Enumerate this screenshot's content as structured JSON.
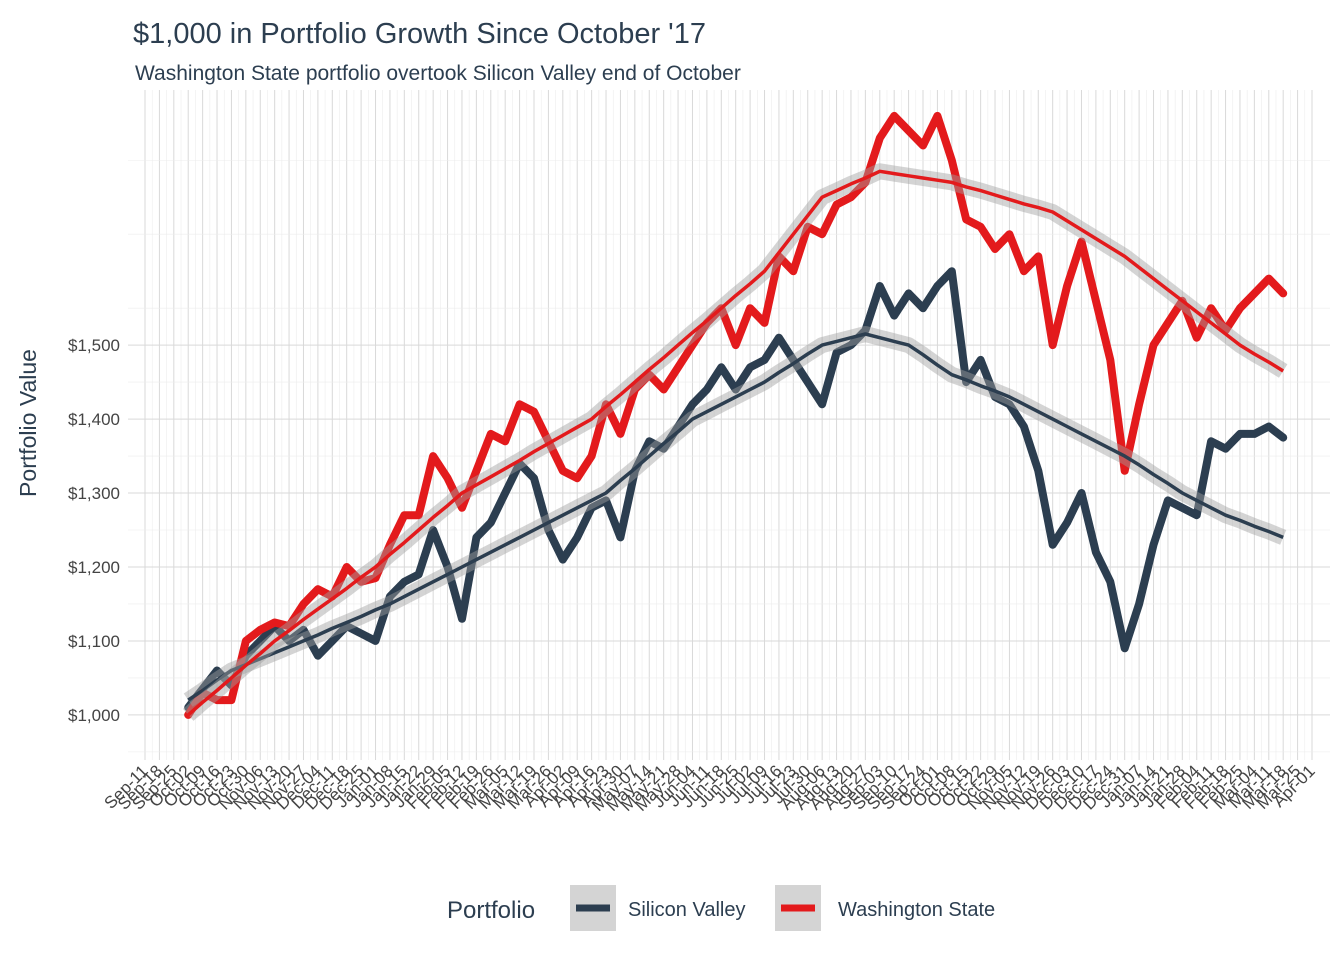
{
  "chart_data": {
    "type": "line",
    "title": "$1,000 in Portfolio Growth Since October '17",
    "subtitle": "Washington State portfolio overtook Silicon Valley end of October",
    "y_label": "Portfolio Value",
    "legend_title": "Portfolio",
    "legend": "bottom",
    "grid": true,
    "categories": [
      "Sep-11",
      "Sep-18",
      "Sep-25",
      "Oct-02",
      "Oct-09",
      "Oct-16",
      "Oct-23",
      "Oct-30",
      "Nov-06",
      "Nov-13",
      "Nov-20",
      "Nov-27",
      "Dec-04",
      "Dec-11",
      "Dec-18",
      "Dec-25",
      "Jan-01",
      "Jan-08",
      "Jan-15",
      "Jan-22",
      "Jan-29",
      "Feb-05",
      "Feb-12",
      "Feb-19",
      "Feb-26",
      "Mar-05",
      "Mar-12",
      "Mar-19",
      "Mar-26",
      "Apr-02",
      "Apr-09",
      "Apr-16",
      "Apr-23",
      "Apr-30",
      "May-07",
      "May-14",
      "May-21",
      "May-28",
      "Jun-04",
      "Jun-11",
      "Jun-18",
      "Jun-25",
      "Jul-02",
      "Jul-09",
      "Jul-16",
      "Jul-23",
      "Jul-30",
      "Aug-06",
      "Aug-13",
      "Aug-20",
      "Aug-27",
      "Sep-03",
      "Sep-10",
      "Sep-17",
      "Sep-24",
      "Oct-01",
      "Oct-08",
      "Oct-15",
      "Oct-22",
      "Oct-29",
      "Nov-05",
      "Nov-12",
      "Nov-19",
      "Nov-26",
      "Dec-03",
      "Dec-10",
      "Dec-17",
      "Dec-24",
      "Dec-31",
      "Jan-07",
      "Jan-14",
      "Jan-21",
      "Jan-28",
      "Feb-04",
      "Feb-11",
      "Feb-18",
      "Feb-25",
      "Mar-04",
      "Mar-11",
      "Mar-18",
      "Mar-25",
      "Apr-01"
    ],
    "ylim": [
      939,
      1845
    ],
    "yticks": [
      {
        "value": 1000,
        "label": "$1,000"
      },
      {
        "value": 1100,
        "label": "$1,100"
      },
      {
        "value": 1200,
        "label": "$1,200"
      },
      {
        "value": 1300,
        "label": "$1,300"
      },
      {
        "value": 1400,
        "label": "$1,400"
      },
      {
        "value": 1500,
        "label": "$1,500"
      }
    ],
    "series": [
      {
        "name": "Silicon Valley",
        "color": "#2c3e50",
        "values": [
          null,
          null,
          null,
          1010,
          1035,
          1060,
          1040,
          1080,
          1100,
          1120,
          1100,
          1115,
          1080,
          1100,
          1120,
          1110,
          1100,
          1160,
          1180,
          1190,
          1250,
          1200,
          1130,
          1240,
          1260,
          1300,
          1340,
          1320,
          1250,
          1210,
          1240,
          1280,
          1290,
          1240,
          1330,
          1370,
          1360,
          1390,
          1420,
          1440,
          1470,
          1440,
          1470,
          1480,
          1510,
          1480,
          1450,
          1420,
          1490,
          1500,
          1520,
          1580,
          1540,
          1570,
          1550,
          1580,
          1600,
          1450,
          1480,
          1430,
          1420,
          1390,
          1330,
          1230,
          1260,
          1300,
          1220,
          1180,
          1090,
          1150,
          1230,
          1290,
          1280,
          1270,
          1370,
          1360,
          1380,
          1380,
          1390,
          1375,
          null,
          null
        ],
        "trend": [
          null,
          null,
          null,
          1020,
          1033,
          1047,
          1060,
          1068,
          1076,
          1084,
          1092,
          1100,
          1108,
          1117,
          1125,
          1133,
          1142,
          1150,
          1160,
          1170,
          1180,
          1190,
          1200,
          1210,
          1220,
          1230,
          1240,
          1250,
          1260,
          1270,
          1280,
          1290,
          1300,
          1317,
          1333,
          1350,
          1367,
          1383,
          1400,
          1410,
          1420,
          1430,
          1440,
          1450,
          1463,
          1475,
          1488,
          1500,
          1505,
          1510,
          1515,
          1510,
          1505,
          1500,
          1487,
          1473,
          1460,
          1453,
          1445,
          1438,
          1430,
          1420,
          1410,
          1400,
          1390,
          1380,
          1370,
          1360,
          1350,
          1338,
          1325,
          1313,
          1300,
          1290,
          1280,
          1270,
          1263,
          1255,
          1248,
          1240,
          null,
          null
        ]
      },
      {
        "name": "Washington State",
        "color": "#e31a1c",
        "values": [
          null,
          null,
          null,
          1000,
          1030,
          1020,
          1020,
          1100,
          1115,
          1125,
          1120,
          1150,
          1170,
          1160,
          1200,
          1180,
          1185,
          1230,
          1270,
          1270,
          1350,
          1320,
          1280,
          1330,
          1380,
          1370,
          1420,
          1410,
          1370,
          1330,
          1320,
          1350,
          1420,
          1380,
          1440,
          1460,
          1440,
          1470,
          1500,
          1530,
          1550,
          1500,
          1550,
          1530,
          1620,
          1600,
          1660,
          1650,
          1690,
          1700,
          1720,
          1780,
          1810,
          1790,
          1770,
          1810,
          1750,
          1670,
          1660,
          1630,
          1650,
          1600,
          1620,
          1500,
          1580,
          1640,
          1560,
          1480,
          1330,
          1420,
          1500,
          1530,
          1560,
          1510,
          1550,
          1520,
          1550,
          1570,
          1590,
          1570,
          null,
          null
        ],
        "trend": [
          null,
          null,
          null,
          1000,
          1017,
          1033,
          1050,
          1067,
          1083,
          1100,
          1114,
          1129,
          1143,
          1157,
          1171,
          1186,
          1200,
          1217,
          1233,
          1250,
          1267,
          1283,
          1300,
          1311,
          1322,
          1333,
          1344,
          1356,
          1367,
          1378,
          1389,
          1400,
          1417,
          1433,
          1450,
          1467,
          1483,
          1500,
          1517,
          1533,
          1550,
          1567,
          1583,
          1600,
          1625,
          1650,
          1675,
          1700,
          1709,
          1718,
          1726,
          1735,
          1732,
          1729,
          1726,
          1723,
          1720,
          1714,
          1709,
          1703,
          1697,
          1691,
          1686,
          1680,
          1668,
          1656,
          1644,
          1632,
          1620,
          1605,
          1590,
          1575,
          1560,
          1545,
          1530,
          1515,
          1500,
          1488,
          1477,
          1465,
          null,
          null
        ]
      }
    ]
  }
}
